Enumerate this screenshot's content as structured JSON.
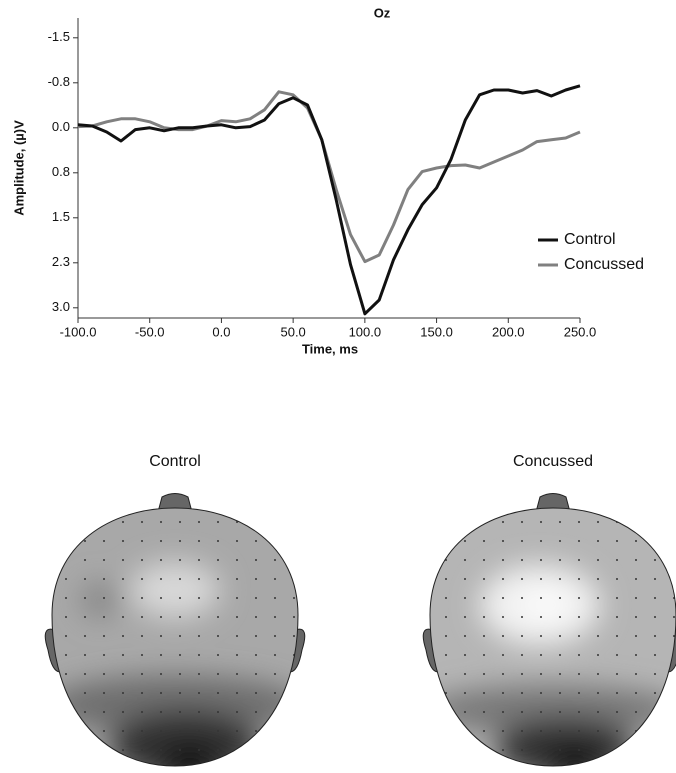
{
  "chart_data": {
    "type": "line",
    "title": "Oz",
    "x_label": "Time, ms",
    "y_label": "Amplitude, (µ)V",
    "x": [
      -100,
      -90,
      -80,
      -70,
      -60,
      -50,
      -40,
      -30,
      -20,
      -10,
      0,
      10,
      20,
      30,
      40,
      50,
      60,
      70,
      80,
      90,
      100,
      110,
      120,
      130,
      140,
      150,
      160,
      170,
      180,
      190,
      200,
      210,
      220,
      230,
      240,
      250
    ],
    "series": [
      {
        "name": "Control",
        "color": "#111111",
        "values": [
          -0.05,
          -0.03,
          0.07,
          0.22,
          0.03,
          0.0,
          0.05,
          0.0,
          0.0,
          -0.03,
          -0.05,
          0.0,
          -0.02,
          -0.13,
          -0.4,
          -0.5,
          -0.38,
          0.2,
          1.2,
          2.28,
          3.1,
          2.87,
          2.2,
          1.7,
          1.28,
          1.0,
          0.53,
          -0.13,
          -0.55,
          -0.63,
          -0.63,
          -0.58,
          -0.62,
          -0.53,
          -0.63,
          -0.7
        ]
      },
      {
        "name": "Concussed",
        "color": "#808080",
        "values": [
          -0.02,
          -0.03,
          -0.1,
          -0.15,
          -0.15,
          -0.1,
          0.0,
          0.03,
          0.03,
          -0.03,
          -0.12,
          -0.1,
          -0.15,
          -0.3,
          -0.6,
          -0.55,
          -0.33,
          0.2,
          1.03,
          1.78,
          2.23,
          2.12,
          1.62,
          1.03,
          0.73,
          0.67,
          0.63,
          0.62,
          0.67,
          0.57,
          0.47,
          0.37,
          0.23,
          0.2,
          0.17,
          0.07
        ]
      }
    ],
    "xlim": [
      -100,
      250
    ],
    "xticks": [
      {
        "value": -100,
        "label": "-100.0"
      },
      {
        "value": -50,
        "label": "-50.0"
      },
      {
        "value": 0,
        "label": "0.0"
      },
      {
        "value": 50,
        "label": "50.0"
      },
      {
        "value": 100,
        "label": "100.0"
      },
      {
        "value": 150,
        "label": "150.0"
      },
      {
        "value": 200,
        "label": "200.0"
      },
      {
        "value": 250,
        "label": "250.0"
      }
    ],
    "ylim": [
      -1.83,
      3.17
    ],
    "y_inverted": true,
    "yticks": [
      -1.5,
      {
        "value": -0.75,
        "label": "-0.8"
      },
      {
        "value": 0,
        "label": "0.0"
      },
      {
        "value": 0.75,
        "label": "0.8"
      },
      1.5,
      {
        "value": 2.25,
        "label": "2.3"
      },
      {
        "value": 3,
        "label": "3.0"
      }
    ],
    "grid": false,
    "legend": "right"
  },
  "topomaps": {
    "titles": [
      "Control",
      "Concussed"
    ]
  }
}
